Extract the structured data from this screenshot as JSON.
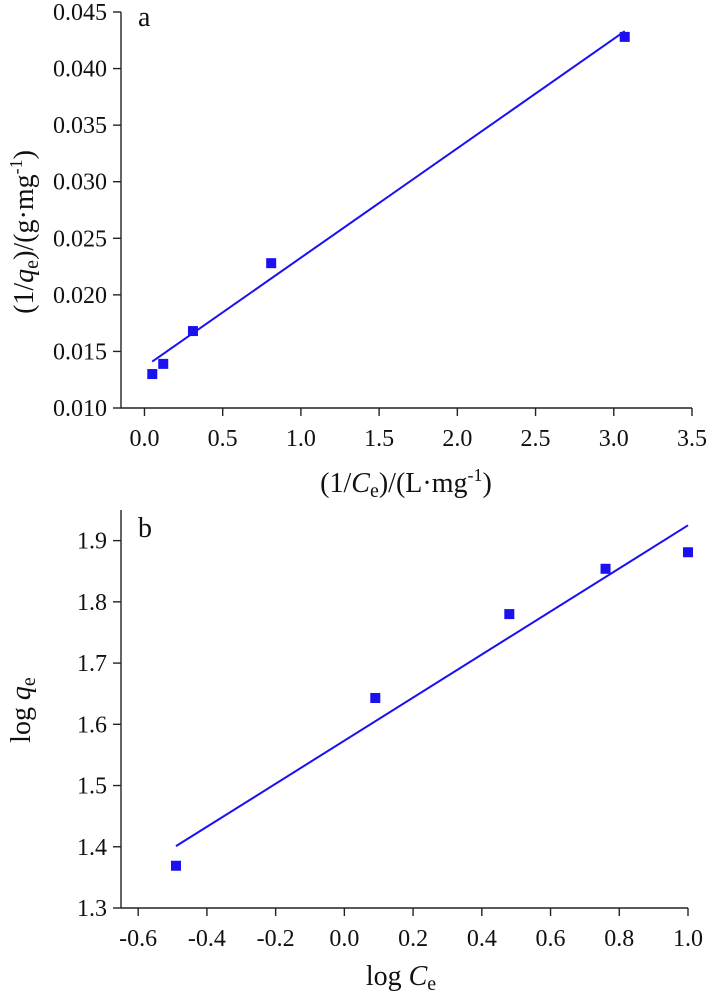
{
  "chart_data": [
    {
      "panel": "a",
      "type": "scatter",
      "title": "",
      "xlabel": {
        "prefix": "(1/",
        "var": "C",
        "sub": "e",
        "mid": ")/(L·mg",
        "sup": "-1",
        "suffix": ")"
      },
      "ylabel": {
        "prefix": "(1/",
        "var": "q",
        "sub": "e",
        "mid": ")/(g·mg",
        "sup": "-1",
        "suffix": ")"
      },
      "xlim": [
        -0.15,
        3.5
      ],
      "ylim": [
        0.01,
        0.045
      ],
      "xticks": [
        0.0,
        0.5,
        1.0,
        1.5,
        2.0,
        2.5,
        3.0,
        3.5
      ],
      "xtick_labels": [
        "0.0",
        "0.5",
        "1.0",
        "1.5",
        "2.0",
        "2.5",
        "3.0",
        "3.5"
      ],
      "yticks": [
        0.01,
        0.015,
        0.02,
        0.025,
        0.03,
        0.035,
        0.04,
        0.045
      ],
      "ytick_labels": [
        "0.010",
        "0.015",
        "0.020",
        "0.025",
        "0.030",
        "0.035",
        "0.040",
        "0.045"
      ],
      "points": {
        "x": [
          0.05,
          0.12,
          0.31,
          0.81,
          3.07
        ],
        "y": [
          0.013,
          0.0139,
          0.0168,
          0.0228,
          0.0428
        ]
      },
      "fit_line": {
        "x": [
          0.05,
          3.07
        ],
        "y": [
          0.0141,
          0.0433
        ]
      },
      "grid": false,
      "legend": "none"
    },
    {
      "panel": "b",
      "type": "scatter",
      "title": "",
      "xlabel": {
        "prefix": "log ",
        "var": "C",
        "sub": "e",
        "mid": "",
        "sup": "",
        "suffix": ""
      },
      "ylabel": {
        "prefix": "log ",
        "var": "q",
        "sub": "e",
        "mid": "",
        "sup": "",
        "suffix": ""
      },
      "xlim": [
        -0.65,
        1.0
      ],
      "ylim": [
        1.3,
        1.95
      ],
      "xticks": [
        -0.6,
        -0.4,
        -0.2,
        0.0,
        0.2,
        0.4,
        0.6,
        0.8,
        1.0
      ],
      "xtick_labels": [
        "-0.6",
        "-0.4",
        "-0.2",
        "0.0",
        "0.2",
        "0.4",
        "0.6",
        "0.8",
        "1.0"
      ],
      "yticks": [
        1.3,
        1.4,
        1.5,
        1.6,
        1.7,
        1.8,
        1.9
      ],
      "ytick_labels": [
        "1.3",
        "1.4",
        "1.5",
        "1.6",
        "1.7",
        "1.8",
        "1.9"
      ],
      "points": {
        "x": [
          -0.49,
          0.09,
          0.48,
          0.76,
          1.0
        ],
        "y": [
          1.369,
          1.643,
          1.78,
          1.854,
          1.881
        ]
      },
      "fit_line": {
        "x": [
          -0.49,
          1.0
        ],
        "y": [
          1.401,
          1.925
        ]
      },
      "grid": false,
      "legend": "none"
    }
  ],
  "colors": {
    "marker": "#1a10f0",
    "fit_line": "#1a10f0",
    "axis": "#222222"
  }
}
